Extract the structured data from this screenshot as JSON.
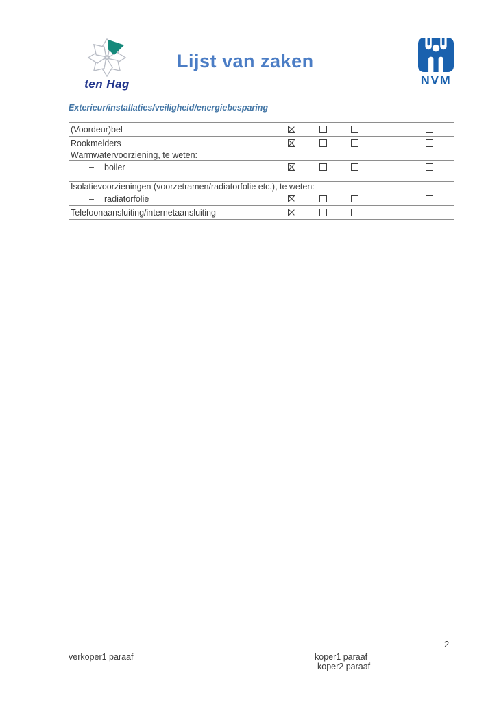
{
  "header": {
    "brand": "ten Hag",
    "title": "Lijst van zaken",
    "nvm_label": "NVM"
  },
  "section": {
    "heading": "Exterieur/installaties/veiligheid/energiebesparing"
  },
  "table": {
    "indent_dash": "–",
    "checkbox_columns": 4,
    "rows": [
      {
        "type": "item",
        "label": "(Voordeur)bel",
        "indent": false,
        "boxes": [
          "checked",
          "empty",
          "empty",
          "empty"
        ]
      },
      {
        "type": "item",
        "label": "Rookmelders",
        "indent": false,
        "boxes": [
          "checked",
          "empty",
          "empty",
          "empty"
        ]
      },
      {
        "type": "header",
        "label": "Warmwatervoorziening, te weten:",
        "indent": false,
        "boxes": []
      },
      {
        "type": "item",
        "label": "boiler",
        "indent": true,
        "boxes": [
          "checked",
          "empty",
          "empty",
          "empty"
        ]
      },
      {
        "type": "spacer",
        "label": "",
        "indent": false,
        "boxes": []
      },
      {
        "type": "header",
        "label": "Isolatievoorzieningen (voorzetramen/radiatorfolie etc.), te weten:",
        "indent": false,
        "boxes": []
      },
      {
        "type": "item",
        "label": "radiatorfolie",
        "indent": true,
        "boxes": [
          "checked",
          "empty",
          "empty",
          "empty"
        ]
      },
      {
        "type": "item",
        "label": "Telefoonaansluiting/internetaansluiting",
        "indent": false,
        "boxes": [
          "checked",
          "empty",
          "empty",
          "empty"
        ]
      }
    ]
  },
  "footer": {
    "page_number": "2",
    "left_label": "verkoper1 paraaf",
    "right_label_1": "koper1 paraaf",
    "right_label_2": "koper2 paraaf"
  },
  "colors": {
    "title_blue": "#4b7dc5",
    "heading_blue": "#4577a6",
    "nvm_blue": "#1a61ae",
    "tenhag_navy": "#20348c",
    "tenhag_teal": "#16897b",
    "line_gray": "#8e8e8e",
    "text": "#3c3c3c"
  }
}
